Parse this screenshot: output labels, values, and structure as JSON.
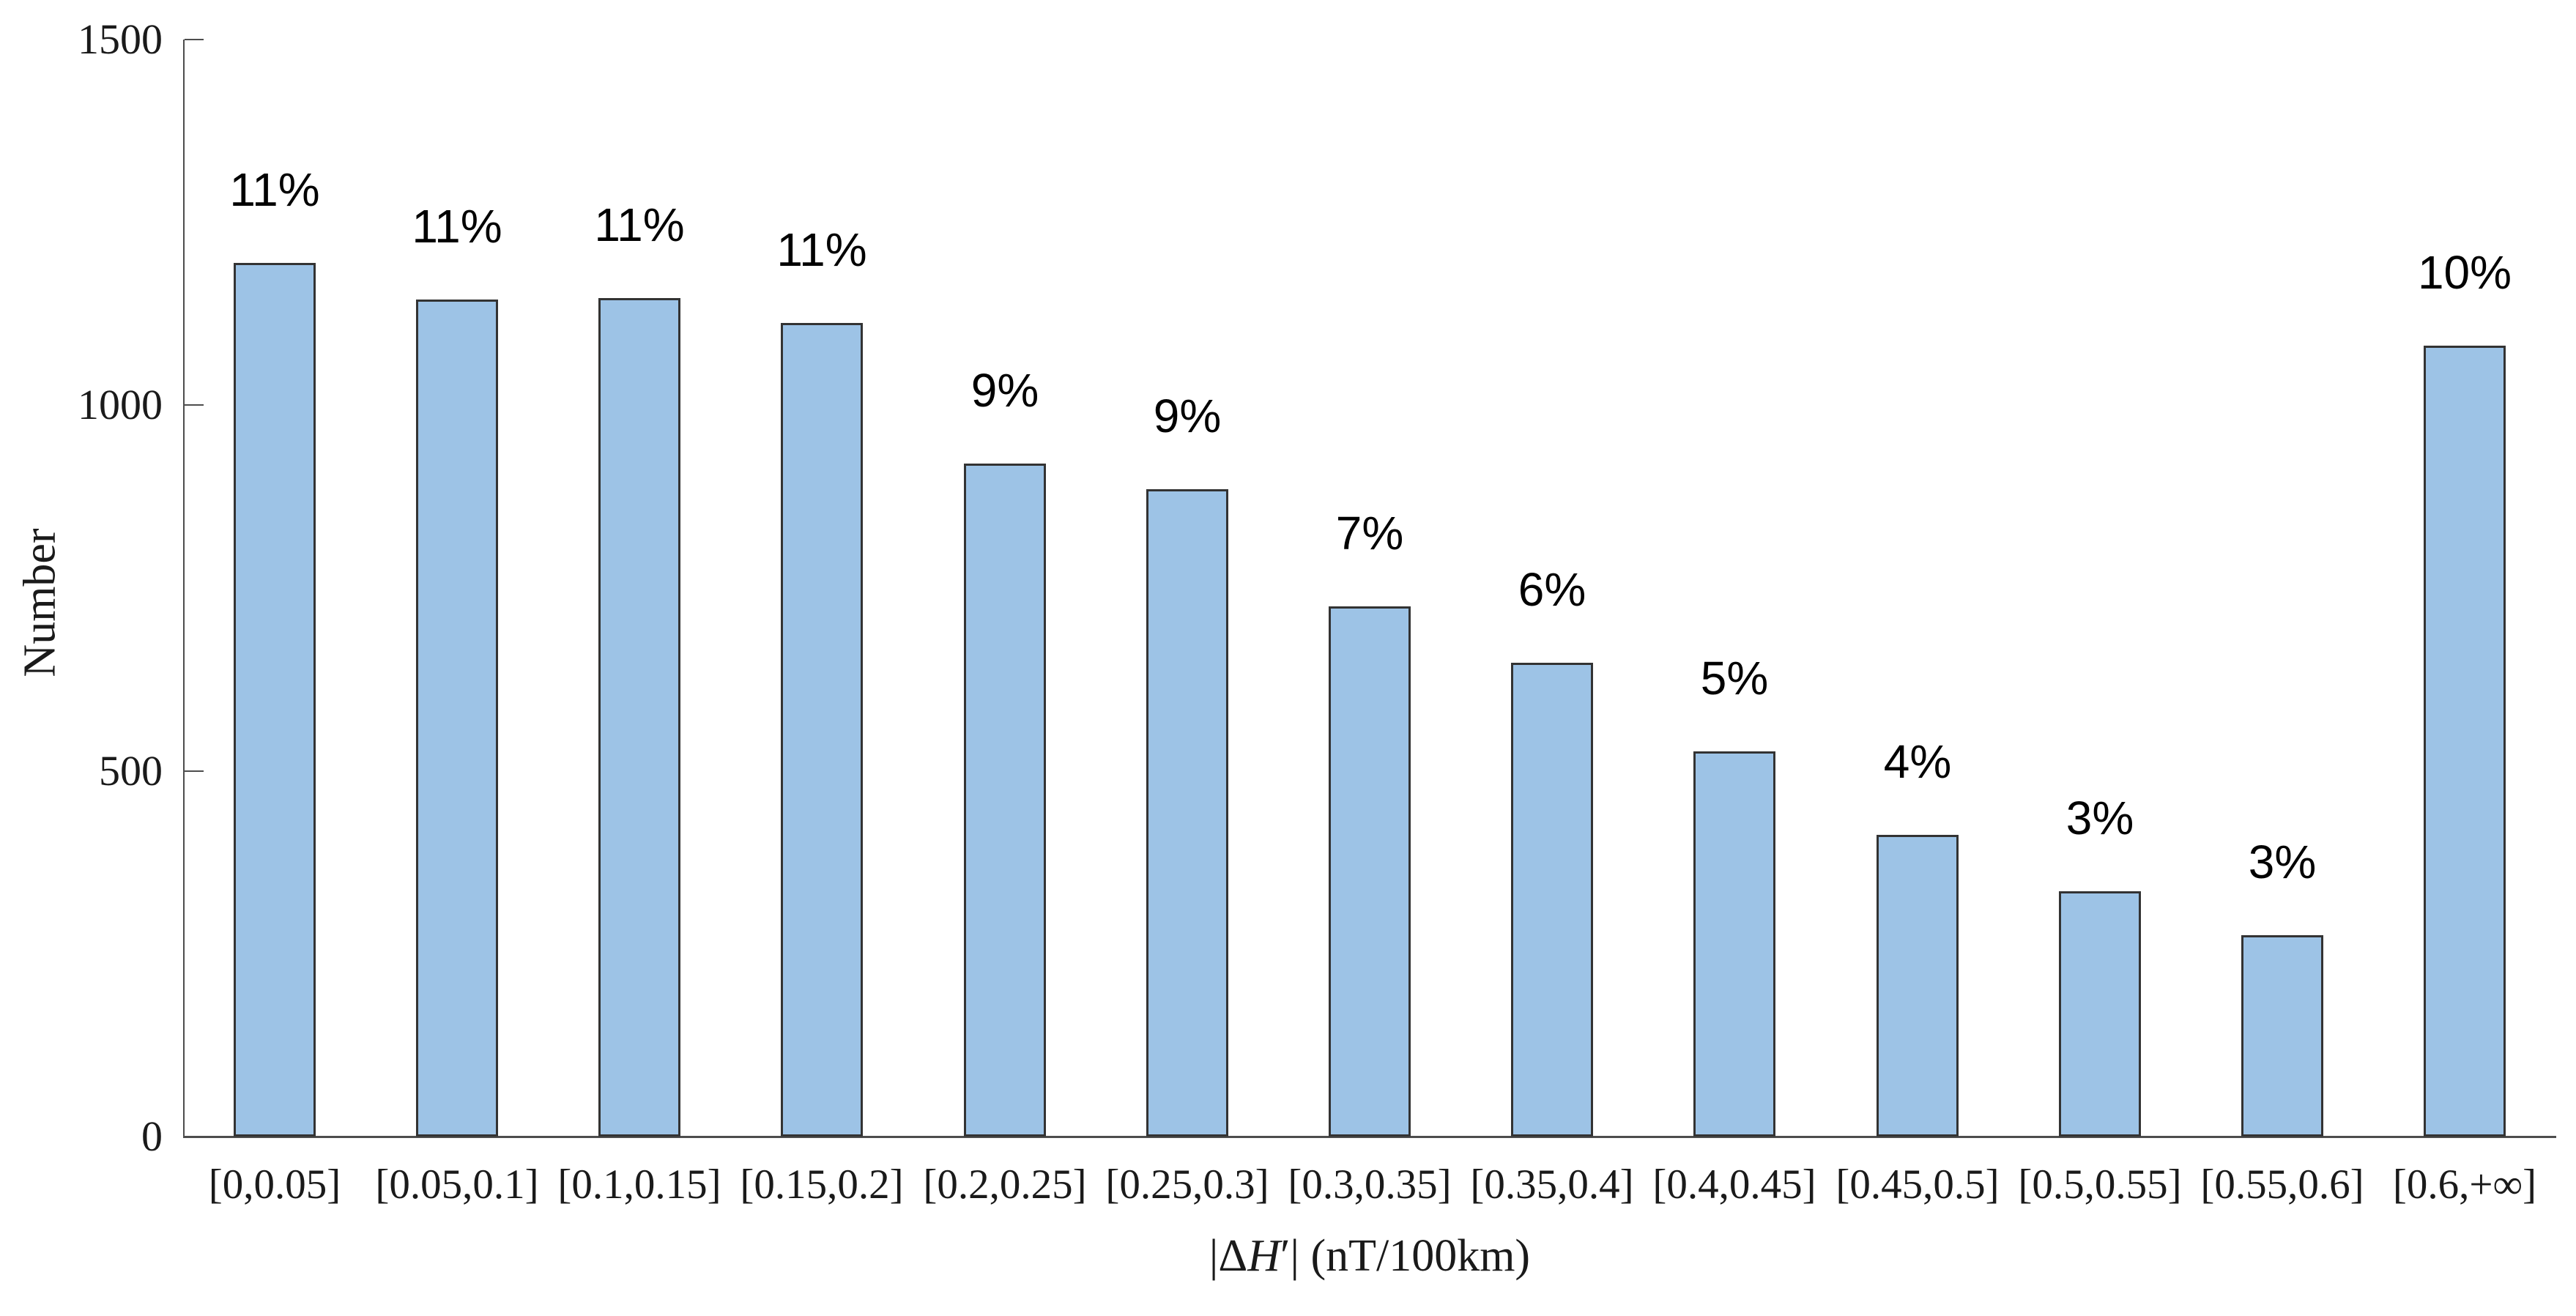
{
  "chart_data": {
    "type": "bar",
    "title": "",
    "ylabel": "Number",
    "xlabel_text": "|ΔH′| (nT/100km)",
    "xlabel_parts": {
      "pre": "|Δ",
      "var": "H",
      "post": "′| (nT/100km)"
    },
    "categories": [
      "[0,0.05]",
      "[0.05,0.1]",
      "[0.1,0.15]",
      "[0.15,0.2]",
      "[0.2,0.25]",
      "[0.25,0.3]",
      "[0.3,0.35]",
      "[0.35,0.4]",
      "[0.4,0.45]",
      "[0.45,0.5]",
      "[0.5,0.55]",
      "[0.55,0.6]",
      "[0.6,+∞]"
    ],
    "values": [
      1195,
      1145,
      1147,
      1112,
      920,
      885,
      725,
      648,
      527,
      413,
      335,
      275,
      1081
    ],
    "bar_labels": [
      "11%",
      "11%",
      "11%",
      "11%",
      "9%",
      "9%",
      "7%",
      "6%",
      "5%",
      "4%",
      "3%",
      "3%",
      "10%"
    ],
    "yticks": [
      0,
      500,
      1000,
      1500
    ],
    "ylim": [
      0,
      1500
    ],
    "grid": false,
    "legend_position": "none",
    "bar_color": "#9DC3E6",
    "bar_border_color": "#333333",
    "axis_color": "#4d4d4d",
    "text_color": "#1a1a1a"
  }
}
